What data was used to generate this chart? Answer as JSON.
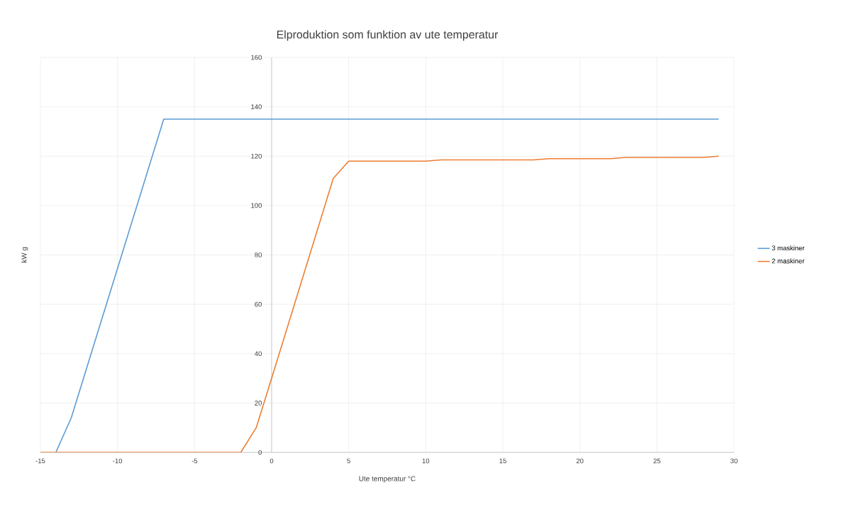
{
  "chart_data": {
    "type": "line",
    "title": "Elproduktion som funktion av ute temperatur",
    "xlabel": "Ute temperatur °C",
    "ylabel": "kW g",
    "xlim": [
      -15,
      30
    ],
    "xticks": [
      -15,
      -10,
      -5,
      0,
      5,
      10,
      15,
      20,
      25,
      30
    ],
    "ylim": [
      0,
      160
    ],
    "yticks": [
      0,
      20,
      40,
      60,
      80,
      100,
      120,
      140,
      160
    ],
    "grid": true,
    "legend": "right",
    "marker": "none",
    "line_style": "solid",
    "series": [
      {
        "name": "3 maskiner",
        "color": "#5b9bd5",
        "x": [
          -14,
          -13,
          -7,
          29
        ],
        "values": [
          0,
          14,
          135,
          135
        ]
      },
      {
        "name": "2 maskiner",
        "color": "#ed7d31",
        "x": [
          -15,
          -2,
          -1,
          0,
          4,
          5,
          10,
          11,
          17,
          18,
          22,
          23,
          28,
          29
        ],
        "values": [
          0,
          0,
          10,
          30,
          111,
          118,
          118,
          118.5,
          118.5,
          119,
          119,
          119.5,
          119.5,
          120
        ]
      }
    ]
  }
}
